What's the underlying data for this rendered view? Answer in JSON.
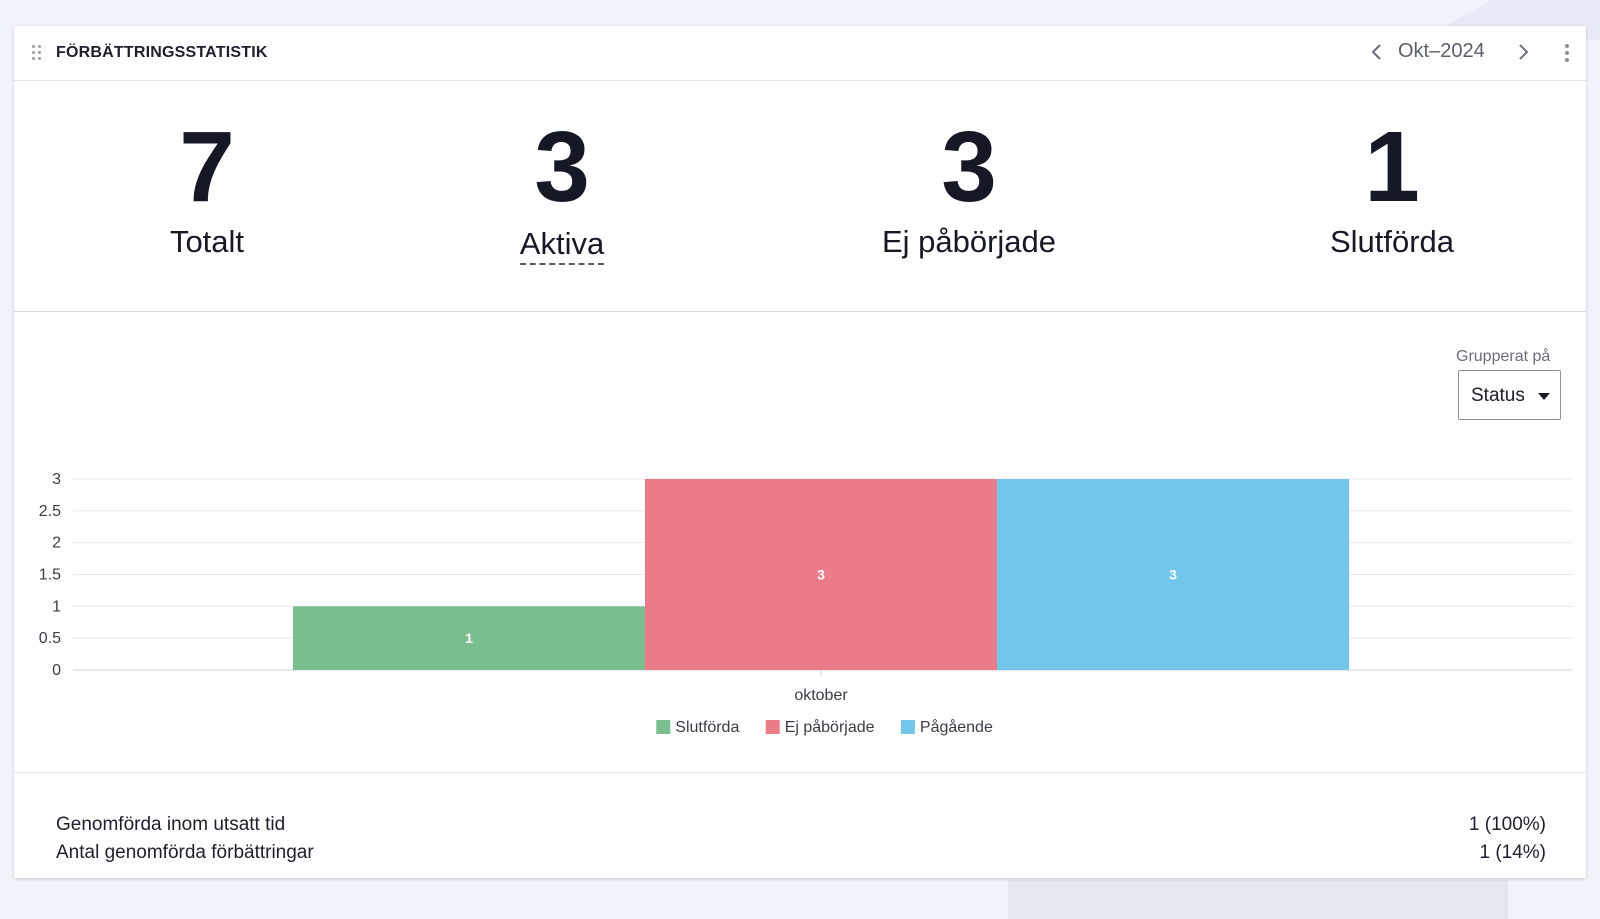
{
  "header": {
    "title": "FÖRBÄTTRINGSSTATISTIK",
    "period": "Okt–2024"
  },
  "kpis": [
    {
      "value": "7",
      "label": "Totalt"
    },
    {
      "value": "3",
      "label": "Aktiva"
    },
    {
      "value": "3",
      "label": "Ej påbörjade"
    },
    {
      "value": "1",
      "label": "Slutförda"
    }
  ],
  "grouping": {
    "label": "Grupperat på",
    "selected": "Status"
  },
  "chart_data": {
    "type": "bar",
    "categories": [
      "oktober"
    ],
    "series": [
      {
        "name": "Slutförda",
        "values": [
          1
        ],
        "color": "#7bbf8e"
      },
      {
        "name": "Ej påbörjade",
        "values": [
          3
        ],
        "color": "#ec7b89"
      },
      {
        "name": "Pågående",
        "values": [
          3
        ],
        "color": "#72c6ea"
      }
    ],
    "yticks": [
      "0",
      "0.5",
      "1",
      "1.5",
      "2",
      "2.5",
      "3"
    ],
    "ylim": [
      0,
      3
    ],
    "grid": true,
    "legend": "bottom-center"
  },
  "footer": {
    "rows": [
      {
        "label": "Genomförda inom utsatt tid",
        "value": "1 (100%)"
      },
      {
        "label": "Antal genomförda förbättringar",
        "value": "1 (14%)"
      }
    ]
  }
}
